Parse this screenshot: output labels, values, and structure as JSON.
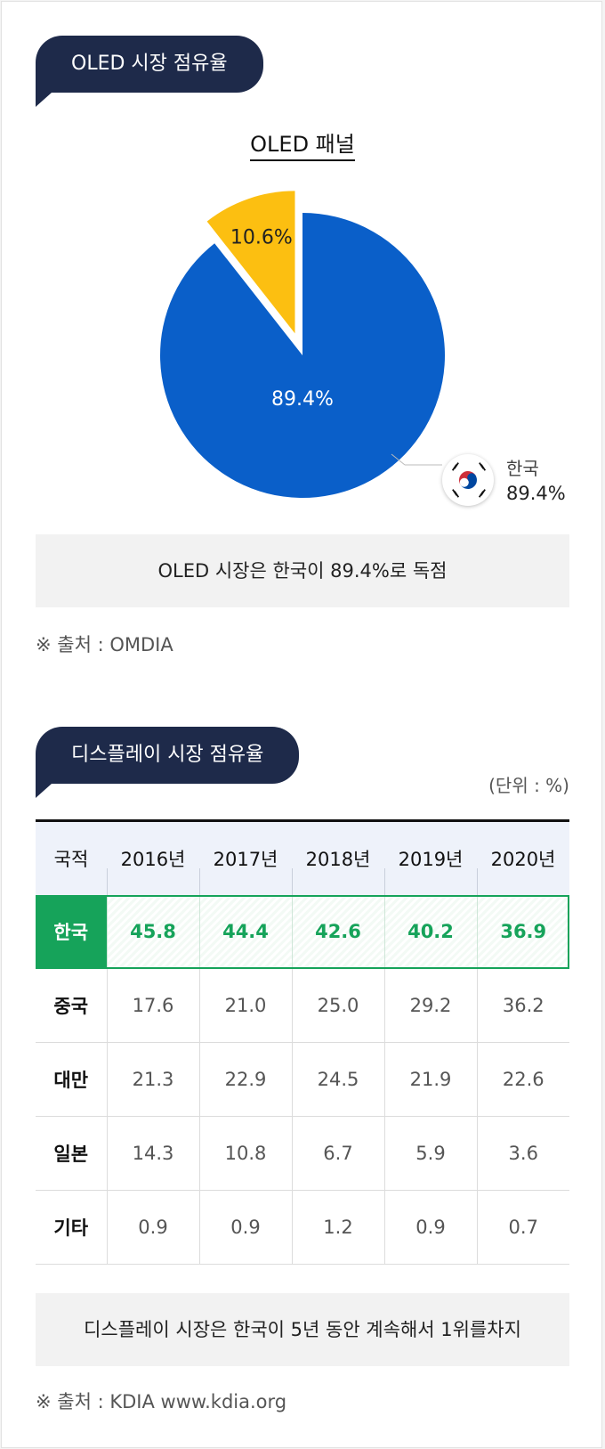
{
  "section1": {
    "title": "OLED 시장 점유율"
  },
  "pie": {
    "title": "OLED 패널",
    "legend_country": "한국",
    "legend_value": "89.4%"
  },
  "chart_data": [
    {
      "type": "pie",
      "title": "OLED 패널",
      "slices": [
        {
          "label": "89.4%",
          "value": 89.4,
          "color": "#0a5fc9",
          "text_color": "#ffffff"
        },
        {
          "label": "10.6%",
          "value": 10.6,
          "color": "#fcbf11",
          "text_color": "#222222",
          "exploded": true
        }
      ]
    },
    {
      "type": "table",
      "headers": [
        "국적",
        "2016년",
        "2017년",
        "2018년",
        "2019년",
        "2020년"
      ],
      "rows": [
        {
          "country": "한국",
          "values": [
            "45.8",
            "44.4",
            "42.6",
            "40.2",
            "36.9"
          ],
          "highlight": true
        },
        {
          "country": "중국",
          "values": [
            "17.6",
            "21.0",
            "25.0",
            "29.2",
            "36.2"
          ]
        },
        {
          "country": "대만",
          "values": [
            "21.3",
            "22.9",
            "24.5",
            "21.9",
            "22.6"
          ]
        },
        {
          "country": "일본",
          "values": [
            "14.3",
            "10.8",
            "6.7",
            "5.9",
            "3.6"
          ]
        },
        {
          "country": "기타",
          "values": [
            "0.9",
            "0.9",
            "1.2",
            "0.9",
            "0.7"
          ]
        }
      ]
    }
  ],
  "note1": "OLED 시장은 한국이 89.4%로 독점",
  "source1": "※ 출처 : OMDIA",
  "section2": {
    "title": "디스플레이 시장 점유율",
    "unit": "(단위 : %)"
  },
  "table": {
    "headers": [
      "국적",
      "2016년",
      "2017년",
      "2018년",
      "2019년",
      "2020년"
    ],
    "rows": [
      {
        "country": "한국",
        "values": [
          "45.8",
          "44.4",
          "42.6",
          "40.2",
          "36.9"
        ]
      },
      {
        "country": "중국",
        "values": [
          "17.6",
          "21.0",
          "25.0",
          "29.2",
          "36.2"
        ]
      },
      {
        "country": "대만",
        "values": [
          "21.3",
          "22.9",
          "24.5",
          "21.9",
          "22.6"
        ]
      },
      {
        "country": "일본",
        "values": [
          "14.3",
          "10.8",
          "6.7",
          "5.9",
          "3.6"
        ]
      },
      {
        "country": "기타",
        "values": [
          "0.9",
          "0.9",
          "1.2",
          "0.9",
          "0.7"
        ]
      }
    ]
  },
  "note2": "디스플레이 시장은 한국이 5년 동안 계속해서 1위를차지",
  "source2": "※ 출처 : KDIA www.kdia.org",
  "colors": {
    "navy": "#1e2a4a",
    "green": "#16a35a",
    "blue": "#0a5fc9",
    "yellow": "#fcbf11"
  }
}
